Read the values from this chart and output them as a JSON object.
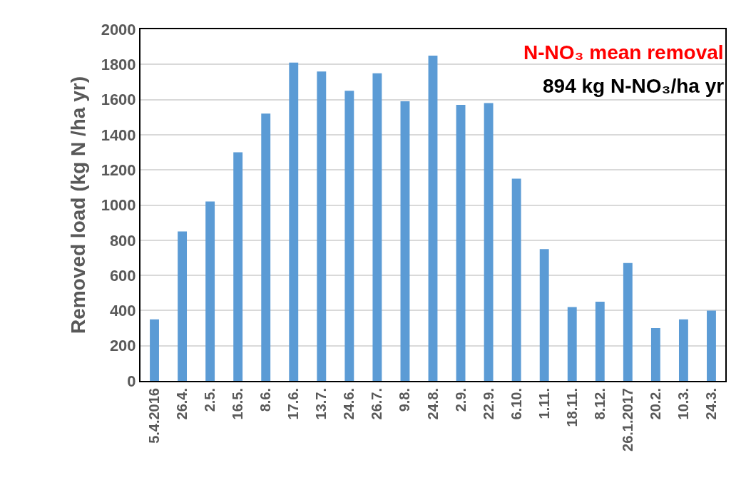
{
  "chart_data": {
    "type": "bar",
    "ylabel": "Removed load (kg N /ha yr)",
    "categories": [
      "5.4.2016",
      "26.4.",
      "2.5.",
      "16.5.",
      "8.6.",
      "17.6.",
      "13.7.",
      "24.6.",
      "26.7.",
      "9.8.",
      "24.8.",
      "2.9.",
      "22.9.",
      "6.10.",
      "1.11.",
      "18.11.",
      "8.12.",
      "26.1.2017",
      "20.2.",
      "10.3.",
      "24.3."
    ],
    "values": [
      350,
      850,
      1020,
      1300,
      1520,
      1810,
      1760,
      1650,
      1750,
      1590,
      1850,
      1570,
      1580,
      1150,
      750,
      420,
      450,
      670,
      300,
      350,
      400
    ],
    "color": "#5b9bd5",
    "ylim": [
      0,
      2000
    ],
    "yticks": [
      0,
      200,
      400,
      600,
      800,
      1000,
      1200,
      1400,
      1600,
      1800,
      2000
    ],
    "grid": "y",
    "annotations": [
      "N-NO₃ mean removal",
      "894 kg N-NO₃/ha yr"
    ]
  }
}
